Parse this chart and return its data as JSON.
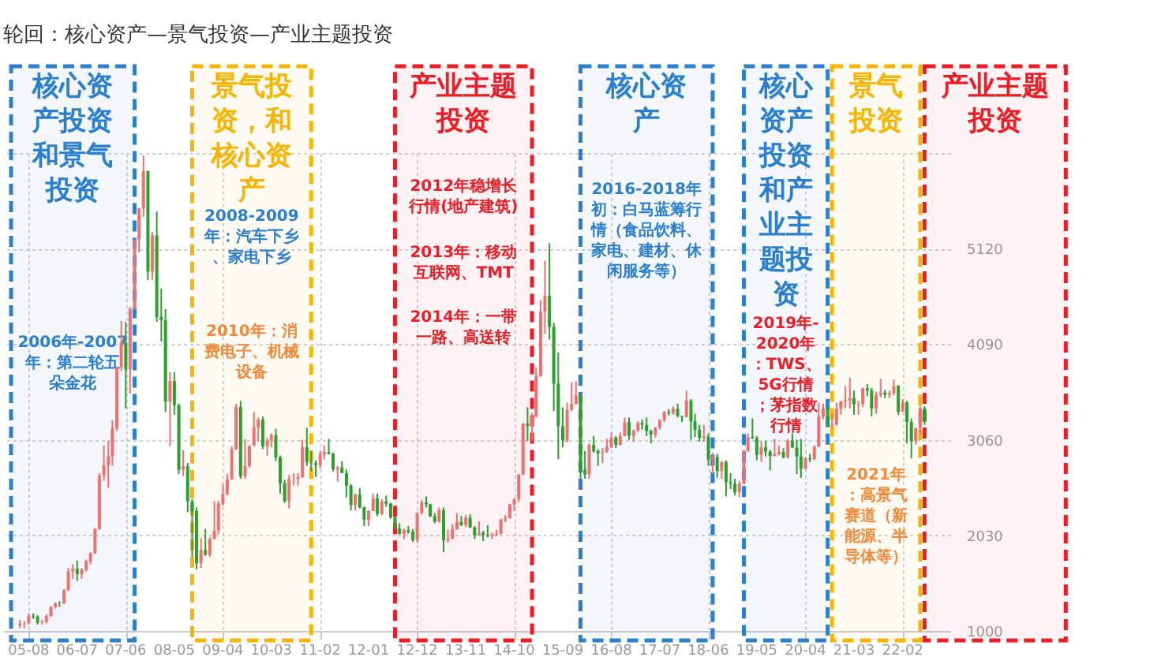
{
  "chart_data": {
    "type": "candlestick",
    "title": "轮回：核心资产—景气投资—产业主题投资",
    "x": [
      "2005-06",
      "2005-07",
      "2005-08",
      "2005-09",
      "2005-10",
      "2005-11",
      "2005-12",
      "2006-01",
      "2006-02",
      "2006-03",
      "2006-04",
      "2006-05",
      "2006-06",
      "2006-07",
      "2006-08",
      "2006-09",
      "2006-10",
      "2006-11",
      "2006-12",
      "2007-01",
      "2007-02",
      "2007-03",
      "2007-04",
      "2007-05",
      "2007-06",
      "2007-07",
      "2007-08",
      "2007-09",
      "2007-10",
      "2007-11",
      "2007-12",
      "2008-01",
      "2008-02",
      "2008-03",
      "2008-04",
      "2008-05",
      "2008-06",
      "2008-07",
      "2008-08",
      "2008-09",
      "2008-10",
      "2008-11",
      "2008-12",
      "2009-01",
      "2009-02",
      "2009-03",
      "2009-04",
      "2009-05",
      "2009-06",
      "2009-07",
      "2009-08",
      "2009-09",
      "2009-10",
      "2009-11",
      "2009-12",
      "2010-01",
      "2010-02",
      "2010-03",
      "2010-04",
      "2010-05",
      "2010-06",
      "2010-07",
      "2010-08",
      "2010-09",
      "2010-10",
      "2010-11",
      "2010-12",
      "2011-01",
      "2011-02",
      "2011-03",
      "2011-04",
      "2011-05",
      "2011-06",
      "2011-07",
      "2011-08",
      "2011-09",
      "2011-10",
      "2011-11",
      "2011-12",
      "2012-01",
      "2012-02",
      "2012-03",
      "2012-04",
      "2012-05",
      "2012-06",
      "2012-07",
      "2012-08",
      "2012-09",
      "2012-10",
      "2012-11",
      "2012-12",
      "2013-01",
      "2013-02",
      "2013-03",
      "2013-04",
      "2013-05",
      "2013-06",
      "2013-07",
      "2013-08",
      "2013-09",
      "2013-10",
      "2013-11",
      "2013-12",
      "2014-01",
      "2014-02",
      "2014-03",
      "2014-04",
      "2014-05",
      "2014-06",
      "2014-07",
      "2014-08",
      "2014-09",
      "2014-10",
      "2014-11",
      "2014-12",
      "2015-01",
      "2015-02",
      "2015-03",
      "2015-04",
      "2015-05",
      "2015-06",
      "2015-07",
      "2015-08",
      "2015-09",
      "2015-10",
      "2015-11",
      "2015-12",
      "2016-01",
      "2016-02",
      "2016-03",
      "2016-04",
      "2016-05",
      "2016-06",
      "2016-07",
      "2016-08",
      "2016-09",
      "2016-10",
      "2016-11",
      "2016-12",
      "2017-01",
      "2017-02",
      "2017-03",
      "2017-04",
      "2017-05",
      "2017-06",
      "2017-07",
      "2017-08",
      "2017-09",
      "2017-10",
      "2017-11",
      "2017-12",
      "2018-01",
      "2018-02",
      "2018-03",
      "2018-04",
      "2018-05",
      "2018-06",
      "2018-07",
      "2018-08",
      "2018-09",
      "2018-10",
      "2018-11",
      "2018-12",
      "2019-01",
      "2019-02",
      "2019-03",
      "2019-04",
      "2019-05",
      "2019-06",
      "2019-07",
      "2019-08",
      "2019-09",
      "2019-10",
      "2019-11",
      "2019-12",
      "2020-01",
      "2020-02",
      "2020-03",
      "2020-04",
      "2020-05",
      "2020-06",
      "2020-07",
      "2020-08",
      "2020-09",
      "2020-10",
      "2020-11",
      "2020-12",
      "2021-01",
      "2021-02",
      "2021-03",
      "2021-04",
      "2021-05",
      "2021-06",
      "2021-07",
      "2021-08",
      "2021-09",
      "2021-10",
      "2021-11",
      "2021-12",
      "2022-01",
      "2022-02",
      "2022-03",
      "2022-04",
      "2022-05",
      "2022-06",
      "2022-07"
    ],
    "ohlc": [
      [
        1060,
        1120,
        1030,
        1080
      ],
      [
        1080,
        1110,
        1030,
        1083
      ],
      [
        1083,
        1190,
        1070,
        1162
      ],
      [
        1162,
        1190,
        1130,
        1155
      ],
      [
        1155,
        1170,
        1070,
        1092
      ],
      [
        1092,
        1120,
        1070,
        1099
      ],
      [
        1099,
        1180,
        1080,
        1161
      ],
      [
        1161,
        1270,
        1150,
        1258
      ],
      [
        1258,
        1310,
        1240,
        1299
      ],
      [
        1299,
        1320,
        1260,
        1298
      ],
      [
        1298,
        1450,
        1290,
        1440
      ],
      [
        1440,
        1680,
        1430,
        1641
      ],
      [
        1641,
        1720,
        1560,
        1672
      ],
      [
        1672,
        1760,
        1540,
        1612
      ],
      [
        1612,
        1680,
        1560,
        1658
      ],
      [
        1658,
        1770,
        1640,
        1752
      ],
      [
        1752,
        1850,
        1720,
        1837
      ],
      [
        1837,
        2110,
        1830,
        2099
      ],
      [
        2099,
        2700,
        2090,
        2675
      ],
      [
        2675,
        3000,
        2620,
        2786
      ],
      [
        2786,
        3050,
        2540,
        2881
      ],
      [
        2881,
        3270,
        2780,
        3183
      ],
      [
        3183,
        3850,
        3160,
        3841
      ],
      [
        3841,
        4340,
        3800,
        4109
      ],
      [
        4109,
        4330,
        3400,
        3820
      ],
      [
        3820,
        4490,
        3560,
        4471
      ],
      [
        4471,
        5220,
        4460,
        5218
      ],
      [
        5218,
        5560,
        5080,
        5552
      ],
      [
        5552,
        6124,
        5460,
        5954
      ],
      [
        5954,
        5960,
        4780,
        4871
      ],
      [
        4871,
        5300,
        4780,
        5262
      ],
      [
        5262,
        5520,
        4330,
        4383
      ],
      [
        4383,
        4690,
        4120,
        4348
      ],
      [
        4348,
        4470,
        3360,
        3473
      ],
      [
        3473,
        3790,
        2990,
        3693
      ],
      [
        3693,
        3790,
        3330,
        3433
      ],
      [
        3433,
        3450,
        2690,
        2736
      ],
      [
        2736,
        2950,
        2670,
        2775
      ],
      [
        2775,
        2810,
        2280,
        2397
      ],
      [
        2397,
        2420,
        1800,
        2293
      ],
      [
        2293,
        2330,
        1664,
        1729
      ],
      [
        1729,
        2000,
        1680,
        1871
      ],
      [
        1871,
        2100,
        1810,
        1821
      ],
      [
        1821,
        2010,
        1800,
        1991
      ],
      [
        1991,
        2400,
        1990,
        2082
      ],
      [
        2082,
        2400,
        2040,
        2373
      ],
      [
        2373,
        2580,
        2350,
        2477
      ],
      [
        2477,
        2690,
        2460,
        2633
      ],
      [
        2633,
        2990,
        2630,
        2959
      ],
      [
        2959,
        3450,
        2950,
        3412
      ],
      [
        3412,
        3480,
        2640,
        2668
      ],
      [
        2668,
        3070,
        2640,
        2779
      ],
      [
        2779,
        3000,
        2760,
        2996
      ],
      [
        2996,
        3360,
        2990,
        3195
      ],
      [
        3195,
        3300,
        3040,
        3277
      ],
      [
        3277,
        3310,
        2960,
        2989
      ],
      [
        2989,
        3080,
        2890,
        3051
      ],
      [
        3051,
        3130,
        2980,
        3110
      ],
      [
        3110,
        3180,
        2830,
        2870
      ],
      [
        2870,
        2890,
        2480,
        2592
      ],
      [
        2592,
        2630,
        2380,
        2398
      ],
      [
        2398,
        2680,
        2320,
        2638
      ],
      [
        2638,
        2700,
        2570,
        2639
      ],
      [
        2639,
        2700,
        2570,
        2656
      ],
      [
        2656,
        3060,
        2650,
        2979
      ],
      [
        2979,
        3190,
        2780,
        2820
      ],
      [
        2820,
        2940,
        2720,
        2808
      ],
      [
        2808,
        2840,
        2660,
        2790
      ],
      [
        2790,
        2940,
        2750,
        2905
      ],
      [
        2905,
        3000,
        2850,
        2928
      ],
      [
        2928,
        3070,
        2900,
        2911
      ],
      [
        2911,
        2920,
        2720,
        2743
      ],
      [
        2743,
        2780,
        2610,
        2762
      ],
      [
        2762,
        2830,
        2700,
        2701
      ],
      [
        2701,
        2740,
        2440,
        2568
      ],
      [
        2568,
        2580,
        2300,
        2359
      ],
      [
        2359,
        2480,
        2300,
        2468
      ],
      [
        2468,
        2540,
        2320,
        2333
      ],
      [
        2333,
        2340,
        2130,
        2199
      ],
      [
        2199,
        2300,
        2130,
        2292
      ],
      [
        2292,
        2480,
        2290,
        2428
      ],
      [
        2428,
        2480,
        2240,
        2262
      ],
      [
        2262,
        2420,
        2250,
        2396
      ],
      [
        2396,
        2460,
        2340,
        2372
      ],
      [
        2372,
        2380,
        2210,
        2225
      ],
      [
        2225,
        2230,
        2100,
        2103
      ],
      [
        2103,
        2160,
        2040,
        2047
      ],
      [
        2047,
        2100,
        1990,
        2086
      ],
      [
        2086,
        2130,
        2050,
        2068
      ],
      [
        2068,
        2100,
        1960,
        1980
      ],
      [
        1980,
        2280,
        1950,
        2269
      ],
      [
        2269,
        2410,
        2260,
        2385
      ],
      [
        2385,
        2450,
        2330,
        2365
      ],
      [
        2365,
        2370,
        2230,
        2236
      ],
      [
        2236,
        2270,
        2160,
        2177
      ],
      [
        2177,
        2330,
        2170,
        2300
      ],
      [
        2300,
        2330,
        1850,
        1979
      ],
      [
        1979,
        2090,
        1950,
        1994
      ],
      [
        1994,
        2150,
        1990,
        2098
      ],
      [
        2098,
        2270,
        2090,
        2175
      ],
      [
        2175,
        2240,
        2130,
        2141
      ],
      [
        2141,
        2250,
        2120,
        2220
      ],
      [
        2220,
        2260,
        2110,
        2116
      ],
      [
        2116,
        2130,
        1990,
        2033
      ],
      [
        2033,
        2180,
        2030,
        2056
      ],
      [
        2056,
        2080,
        1970,
        2033
      ],
      [
        2033,
        2140,
        2010,
        2026
      ],
      [
        2026,
        2060,
        1990,
        2039
      ],
      [
        2039,
        2090,
        2020,
        2048
      ],
      [
        2048,
        2210,
        2040,
        2202
      ],
      [
        2202,
        2250,
        2170,
        2217
      ],
      [
        2217,
        2370,
        2210,
        2364
      ],
      [
        2364,
        2430,
        2290,
        2420
      ],
      [
        2420,
        2690,
        2390,
        2683
      ],
      [
        2683,
        3240,
        2680,
        3235
      ],
      [
        3235,
        3410,
        3050,
        3210
      ],
      [
        3210,
        3350,
        3050,
        3310
      ],
      [
        3310,
        3840,
        3300,
        3748
      ],
      [
        3748,
        4570,
        3740,
        4442
      ],
      [
        4442,
        4990,
        4200,
        4612
      ],
      [
        4612,
        5178,
        4140,
        4277
      ],
      [
        4277,
        4320,
        3370,
        3664
      ],
      [
        3664,
        4000,
        2850,
        3206
      ],
      [
        3206,
        3410,
        2980,
        3053
      ],
      [
        3053,
        3460,
        3030,
        3383
      ],
      [
        3383,
        3680,
        3370,
        3445
      ],
      [
        3445,
        3690,
        3440,
        3539
      ],
      [
        3539,
        3540,
        2640,
        2738
      ],
      [
        2738,
        2940,
        2640,
        2688
      ],
      [
        2688,
        3020,
        2640,
        3004
      ],
      [
        3004,
        3100,
        2920,
        2938
      ],
      [
        2938,
        2960,
        2780,
        2917
      ],
      [
        2917,
        2970,
        2810,
        2930
      ],
      [
        2930,
        3070,
        2920,
        2979
      ],
      [
        2979,
        3140,
        2970,
        3085
      ],
      [
        3085,
        3100,
        2970,
        3005
      ],
      [
        3005,
        3140,
        3000,
        3100
      ],
      [
        3100,
        3300,
        3100,
        3250
      ],
      [
        3250,
        3300,
        3060,
        3104
      ],
      [
        3104,
        3170,
        3040,
        3159
      ],
      [
        3159,
        3260,
        3140,
        3242
      ],
      [
        3242,
        3280,
        3170,
        3223
      ],
      [
        3223,
        3300,
        3100,
        3155
      ],
      [
        3155,
        3170,
        3020,
        3117
      ],
      [
        3117,
        3200,
        3080,
        3192
      ],
      [
        3192,
        3280,
        3170,
        3273
      ],
      [
        3273,
        3370,
        3250,
        3361
      ],
      [
        3361,
        3390,
        3320,
        3349
      ],
      [
        3349,
        3420,
        3330,
        3393
      ],
      [
        3393,
        3450,
        3300,
        3317
      ],
      [
        3317,
        3320,
        3250,
        3307
      ],
      [
        3307,
        3590,
        3300,
        3481
      ],
      [
        3481,
        3500,
        3060,
        3259
      ],
      [
        3259,
        3340,
        3090,
        3169
      ],
      [
        3169,
        3220,
        3040,
        3082
      ],
      [
        3082,
        3220,
        3040,
        3095
      ],
      [
        3095,
        3130,
        2780,
        2847
      ],
      [
        2847,
        2920,
        2690,
        2876
      ],
      [
        2876,
        2910,
        2650,
        2725
      ],
      [
        2725,
        2830,
        2640,
        2821
      ],
      [
        2821,
        2840,
        2450,
        2603
      ],
      [
        2603,
        2700,
        2530,
        2588
      ],
      [
        2588,
        2640,
        2460,
        2494
      ],
      [
        2494,
        2620,
        2440,
        2585
      ],
      [
        2585,
        2950,
        2580,
        2941
      ],
      [
        2941,
        3130,
        2930,
        3091
      ],
      [
        3091,
        3290,
        3070,
        3078
      ],
      [
        3078,
        3100,
        2840,
        2899
      ],
      [
        2899,
        3040,
        2820,
        2979
      ],
      [
        2979,
        3050,
        2880,
        2933
      ],
      [
        2933,
        2950,
        2730,
        2886
      ],
      [
        2886,
        3070,
        2880,
        2905
      ],
      [
        2905,
        3000,
        2890,
        2929
      ],
      [
        2929,
        2970,
        2860,
        2871
      ],
      [
        2871,
        3070,
        2860,
        3050
      ],
      [
        3050,
        3130,
        2970,
        2977
      ],
      [
        2977,
        3060,
        2690,
        2880
      ],
      [
        2880,
        3070,
        2650,
        2750
      ],
      [
        2750,
        2870,
        2740,
        2860
      ],
      [
        2860,
        2910,
        2820,
        2852
      ],
      [
        2852,
        3000,
        2840,
        2985
      ],
      [
        2985,
        3460,
        2980,
        3310
      ],
      [
        3310,
        3450,
        3280,
        3396
      ],
      [
        3396,
        3430,
        3200,
        3218
      ],
      [
        3218,
        3350,
        3200,
        3225
      ],
      [
        3225,
        3460,
        3210,
        3392
      ],
      [
        3392,
        3480,
        3330,
        3473
      ],
      [
        3473,
        3640,
        3400,
        3483
      ],
      [
        3483,
        3730,
        3400,
        3509
      ],
      [
        3509,
        3590,
        3330,
        3442
      ],
      [
        3442,
        3480,
        3330,
        3447
      ],
      [
        3447,
        3620,
        3410,
        3615
      ],
      [
        3615,
        3660,
        3530,
        3591
      ],
      [
        3591,
        3620,
        3310,
        3397
      ],
      [
        3397,
        3580,
        3340,
        3544
      ],
      [
        3544,
        3720,
        3520,
        3568
      ],
      [
        3568,
        3600,
        3510,
        3547
      ],
      [
        3547,
        3590,
        3510,
        3564
      ],
      [
        3564,
        3710,
        3540,
        3640
      ],
      [
        3640,
        3650,
        3330,
        3361
      ],
      [
        3361,
        3500,
        3360,
        3462
      ],
      [
        3462,
        3480,
        3020,
        3252
      ],
      [
        3252,
        3290,
        2860,
        3047
      ],
      [
        3047,
        3190,
        3010,
        3186
      ],
      [
        3186,
        3420,
        3120,
        3399
      ],
      [
        3399,
        3420,
        3220,
        3253
      ]
    ],
    "xlim": [
      "2005-04",
      "2022-11"
    ],
    "xticks": [
      {
        "value": "2005-08",
        "label": "05-08"
      },
      {
        "value": "2006-07",
        "label": "06-07"
      },
      {
        "value": "2007-06",
        "label": "07-06"
      },
      {
        "value": "2008-05",
        "label": "08-05"
      },
      {
        "value": "2009-04",
        "label": "09-04"
      },
      {
        "value": "2010-03",
        "label": "10-03"
      },
      {
        "value": "2011-02",
        "label": "11-02"
      },
      {
        "value": "2012-01",
        "label": "12-01"
      },
      {
        "value": "2012-12",
        "label": "12-12"
      },
      {
        "value": "2013-11",
        "label": "13-11"
      },
      {
        "value": "2014-10",
        "label": "14-10"
      },
      {
        "value": "2015-09",
        "label": "15-09"
      },
      {
        "value": "2016-08",
        "label": "16-08"
      },
      {
        "value": "2017-07",
        "label": "17-07"
      },
      {
        "value": "2018-06",
        "label": "18-06"
      },
      {
        "value": "2019-05",
        "label": "19-05"
      },
      {
        "value": "2020-04",
        "label": "20-04"
      },
      {
        "value": "2021-03",
        "label": "21-03"
      },
      {
        "value": "2022-02",
        "label": "22-02"
      }
    ],
    "ylim": [
      1000,
      6150
    ],
    "yticks": [
      1000,
      2030,
      3060,
      4090,
      5120,
      {
        "value": 6150,
        "label": null
      }
    ],
    "grid": true,
    "bands": [
      {
        "axis": "x",
        "from": "2005-04",
        "to": "2007-08",
        "label": "核心资产投资和景气投资",
        "color": "#2a7fcf"
      },
      {
        "axis": "x",
        "from": "2008-09",
        "to": "2010-12",
        "label": "景气投资，和核心资产",
        "color": "#f7b500"
      },
      {
        "axis": "x",
        "from": "2012-07",
        "to": "2015-02",
        "label": "产业主题投资",
        "color": "#ee1c25"
      },
      {
        "axis": "x",
        "from": "2016-01",
        "to": "2018-07",
        "label": "核心资产",
        "color": "#2a7fcf"
      },
      {
        "axis": "x",
        "from": "2019-02",
        "to": "2020-09",
        "label": "核心资产投资和产业主题投资",
        "color": "#2a7fcf"
      },
      {
        "axis": "x",
        "from": "2020-10",
        "to": "2022-06",
        "label": "景气投资",
        "color": "#f7b500"
      },
      {
        "axis": "x",
        "from": "2022-07",
        "to": "2025-03",
        "label": "产业主题投资",
        "color": "#ee1c25"
      }
    ],
    "annotations": [
      "2006年-2007年：第二轮五朵金花",
      "2008-2009年：汽车下乡、家电下乡",
      "2010年：消费电子、机械设备",
      "2012年稳增长行情(地产建筑)",
      "2013年：移动互联网、TMT",
      "2014年：一带一路、高送转",
      "2016-2018年初：白马蓝筹行情（食品饮料、家电、建材、休闲服务等）",
      "2019年-2020年：TWS、5G行情；茅指数行情",
      "2021年：高景气赛道（新能源、半导体等）"
    ]
  }
}
